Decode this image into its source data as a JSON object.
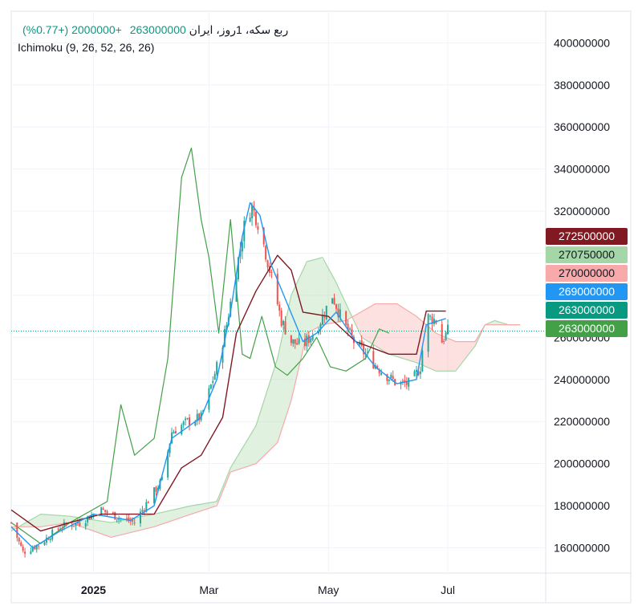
{
  "header": {
    "symbol": "ربع سکه، 1روز، ایران",
    "last": "263000000",
    "change": "+2000000 (+0.77%)",
    "indicator": "Ichimoku (9, 26, 52, 26, 26)"
  },
  "colors": {
    "up": "#26a69a",
    "down": "#ef5350",
    "conversion": "#2196f3",
    "base": "#801922",
    "lagging": "#43a047",
    "spanA": "#a5d6a7",
    "spanB": "#f8a9a9"
  },
  "badges": [
    {
      "text": "272500000",
      "value": 272500000,
      "bg": "#801922",
      "fg": "#ffffff"
    },
    {
      "text": "270750000",
      "value": 270750000,
      "bg": "#a5d6a7",
      "fg": "#131722"
    },
    {
      "text": "270000000",
      "value": 270000000,
      "bg": "#f8a9a9",
      "fg": "#131722"
    },
    {
      "text": "269000000",
      "value": 269000000,
      "bg": "#2196f3",
      "fg": "#ffffff"
    },
    {
      "text": "263000000",
      "value": 263000000,
      "bg": "#089981",
      "fg": "#ffffff"
    },
    {
      "text": "263000000",
      "value": 263000000,
      "bg": "#43a047",
      "fg": "#ffffff"
    }
  ],
  "chart_data": {
    "type": "candlestick",
    "ylim": [
      148000000,
      415000000
    ],
    "yticks": [
      160000000,
      180000000,
      200000000,
      220000000,
      240000000,
      260000000,
      280000000,
      300000000,
      320000000,
      340000000,
      360000000,
      380000000,
      400000000
    ],
    "ytick_labels": [
      "160000000",
      "180000000",
      "200000000",
      "220000000",
      "240000000",
      "260000000",
      "280000000",
      "300000000",
      "320000000",
      "340000000",
      "360000000",
      "380000000",
      "400000000"
    ],
    "xlim": [
      "2024-11-20",
      "2025-08-20"
    ],
    "xticks": [
      {
        "date": "2025-01-01",
        "label": "2025",
        "bold": true
      },
      {
        "date": "2025-03-01",
        "label": "Mar",
        "bold": false
      },
      {
        "date": "2025-05-01",
        "label": "May",
        "bold": false
      },
      {
        "date": "2025-07-01",
        "label": "Jul",
        "bold": false
      }
    ],
    "last_price": 263000000,
    "close_anchors": [
      [
        "2024-11-20",
        172000000
      ],
      [
        "2024-11-26",
        158000000
      ],
      [
        "2024-12-05",
        162000000
      ],
      [
        "2024-12-15",
        170000000
      ],
      [
        "2024-12-25",
        172000000
      ],
      [
        "2025-01-05",
        178000000
      ],
      [
        "2025-01-15",
        174000000
      ],
      [
        "2025-01-22",
        172000000
      ],
      [
        "2025-01-30",
        184000000
      ],
      [
        "2025-02-05",
        192000000
      ],
      [
        "2025-02-10",
        215000000
      ],
      [
        "2025-02-18",
        220000000
      ],
      [
        "2025-02-25",
        222000000
      ],
      [
        "2025-03-05",
        246000000
      ],
      [
        "2025-03-10",
        266000000
      ],
      [
        "2025-03-15",
        292000000
      ],
      [
        "2025-03-20",
        318000000
      ],
      [
        "2025-03-23",
        322000000
      ],
      [
        "2025-03-27",
        312000000
      ],
      [
        "2025-04-01",
        292000000
      ],
      [
        "2025-04-07",
        268000000
      ],
      [
        "2025-04-12",
        258000000
      ],
      [
        "2025-04-18",
        256000000
      ],
      [
        "2025-04-25",
        264000000
      ],
      [
        "2025-05-03",
        280000000
      ],
      [
        "2025-05-08",
        268000000
      ],
      [
        "2025-05-14",
        258000000
      ],
      [
        "2025-05-20",
        252000000
      ],
      [
        "2025-05-28",
        244000000
      ],
      [
        "2025-06-05",
        238000000
      ],
      [
        "2025-06-12",
        238000000
      ],
      [
        "2025-06-17",
        246000000
      ],
      [
        "2025-06-20",
        270000000
      ],
      [
        "2025-06-25",
        268000000
      ],
      [
        "2025-06-28",
        258000000
      ],
      [
        "2025-07-01",
        263000000
      ]
    ],
    "conversion_line": [
      [
        "2024-11-20",
        170000000
      ],
      [
        "2024-12-01",
        160000000
      ],
      [
        "2024-12-15",
        168000000
      ],
      [
        "2025-01-01",
        176000000
      ],
      [
        "2025-01-20",
        173000000
      ],
      [
        "2025-02-01",
        180000000
      ],
      [
        "2025-02-10",
        212000000
      ],
      [
        "2025-02-25",
        222000000
      ],
      [
        "2025-03-05",
        240000000
      ],
      [
        "2025-03-12",
        272000000
      ],
      [
        "2025-03-18",
        308000000
      ],
      [
        "2025-03-22",
        324000000
      ],
      [
        "2025-03-27",
        318000000
      ],
      [
        "2025-04-02",
        294000000
      ],
      [
        "2025-04-10",
        276000000
      ],
      [
        "2025-04-18",
        258000000
      ],
      [
        "2025-04-25",
        262000000
      ],
      [
        "2025-05-05",
        272000000
      ],
      [
        "2025-05-15",
        258000000
      ],
      [
        "2025-05-25",
        246000000
      ],
      [
        "2025-06-05",
        238000000
      ],
      [
        "2025-06-15",
        240000000
      ],
      [
        "2025-06-20",
        266000000
      ],
      [
        "2025-06-30",
        269000000
      ]
    ],
    "base_line": [
      [
        "2024-11-20",
        178000000
      ],
      [
        "2024-12-05",
        168000000
      ],
      [
        "2024-12-20",
        172000000
      ],
      [
        "2025-01-05",
        176000000
      ],
      [
        "2025-02-01",
        176000000
      ],
      [
        "2025-02-15",
        198000000
      ],
      [
        "2025-02-25",
        204000000
      ],
      [
        "2025-03-08",
        222000000
      ],
      [
        "2025-03-15",
        262000000
      ],
      [
        "2025-03-25",
        282000000
      ],
      [
        "2025-04-05",
        299000000
      ],
      [
        "2025-04-12",
        292000000
      ],
      [
        "2025-04-18",
        272000000
      ],
      [
        "2025-05-01",
        270000000
      ],
      [
        "2025-05-15",
        258000000
      ],
      [
        "2025-06-01",
        252000000
      ],
      [
        "2025-06-15",
        252000000
      ],
      [
        "2025-06-20",
        272500000
      ],
      [
        "2025-06-30",
        272500000
      ]
    ],
    "lagging_span": [
      [
        "2024-11-20",
        172000000
      ],
      [
        "2024-12-05",
        162000000
      ],
      [
        "2024-12-20",
        172000000
      ],
      [
        "2025-01-08",
        182000000
      ],
      [
        "2025-01-15",
        228000000
      ],
      [
        "2025-01-22",
        204000000
      ],
      [
        "2025-02-01",
        212000000
      ],
      [
        "2025-02-08",
        250000000
      ],
      [
        "2025-02-15",
        336000000
      ],
      [
        "2025-02-20",
        350000000
      ],
      [
        "2025-02-25",
        316000000
      ],
      [
        "2025-03-01",
        298000000
      ],
      [
        "2025-03-06",
        262000000
      ],
      [
        "2025-03-12",
        316000000
      ],
      [
        "2025-03-18",
        252000000
      ],
      [
        "2025-03-22",
        250000000
      ],
      [
        "2025-03-28",
        270000000
      ],
      [
        "2025-04-04",
        246000000
      ],
      [
        "2025-04-10",
        242000000
      ],
      [
        "2025-04-18",
        250000000
      ],
      [
        "2025-04-25",
        260000000
      ],
      [
        "2025-05-02",
        246000000
      ],
      [
        "2025-05-10",
        244000000
      ],
      [
        "2025-05-20",
        250000000
      ],
      [
        "2025-05-27",
        264000000
      ],
      [
        "2025-06-01",
        262000000
      ]
    ],
    "span_a": [
      [
        "2024-11-20",
        168000000
      ],
      [
        "2024-12-05",
        176000000
      ],
      [
        "2024-12-20",
        175000000
      ],
      [
        "2025-01-10",
        172000000
      ],
      [
        "2025-02-01",
        176000000
      ],
      [
        "2025-02-20",
        180000000
      ],
      [
        "2025-03-05",
        182000000
      ],
      [
        "2025-03-12",
        198000000
      ],
      [
        "2025-03-25",
        218000000
      ],
      [
        "2025-04-05",
        250000000
      ],
      [
        "2025-04-12",
        280000000
      ],
      [
        "2025-04-20",
        296000000
      ],
      [
        "2025-04-28",
        298000000
      ],
      [
        "2025-05-05",
        286000000
      ],
      [
        "2025-05-18",
        260000000
      ],
      [
        "2025-06-01",
        252000000
      ],
      [
        "2025-06-15",
        248000000
      ],
      [
        "2025-06-25",
        244000000
      ],
      [
        "2025-07-05",
        244000000
      ],
      [
        "2025-07-15",
        256000000
      ],
      [
        "2025-07-20",
        266000000
      ],
      [
        "2025-07-25",
        268000000
      ],
      [
        "2025-08-01",
        266000000
      ],
      [
        "2025-08-07",
        266000000
      ]
    ],
    "span_b": [
      [
        "2024-11-20",
        170000000
      ],
      [
        "2024-12-05",
        170000000
      ],
      [
        "2024-12-20",
        172000000
      ],
      [
        "2025-01-10",
        165000000
      ],
      [
        "2025-02-01",
        170000000
      ],
      [
        "2025-02-20",
        176000000
      ],
      [
        "2025-03-05",
        180000000
      ],
      [
        "2025-03-12",
        196000000
      ],
      [
        "2025-03-25",
        200000000
      ],
      [
        "2025-04-05",
        210000000
      ],
      [
        "2025-04-12",
        230000000
      ],
      [
        "2025-04-20",
        262000000
      ],
      [
        "2025-04-28",
        266000000
      ],
      [
        "2025-05-10",
        268000000
      ],
      [
        "2025-05-25",
        276000000
      ],
      [
        "2025-06-05",
        276000000
      ],
      [
        "2025-06-15",
        270000000
      ],
      [
        "2025-06-25",
        262000000
      ],
      [
        "2025-07-05",
        258000000
      ],
      [
        "2025-07-15",
        258000000
      ],
      [
        "2025-07-20",
        266000000
      ],
      [
        "2025-08-07",
        266000000
      ]
    ]
  }
}
